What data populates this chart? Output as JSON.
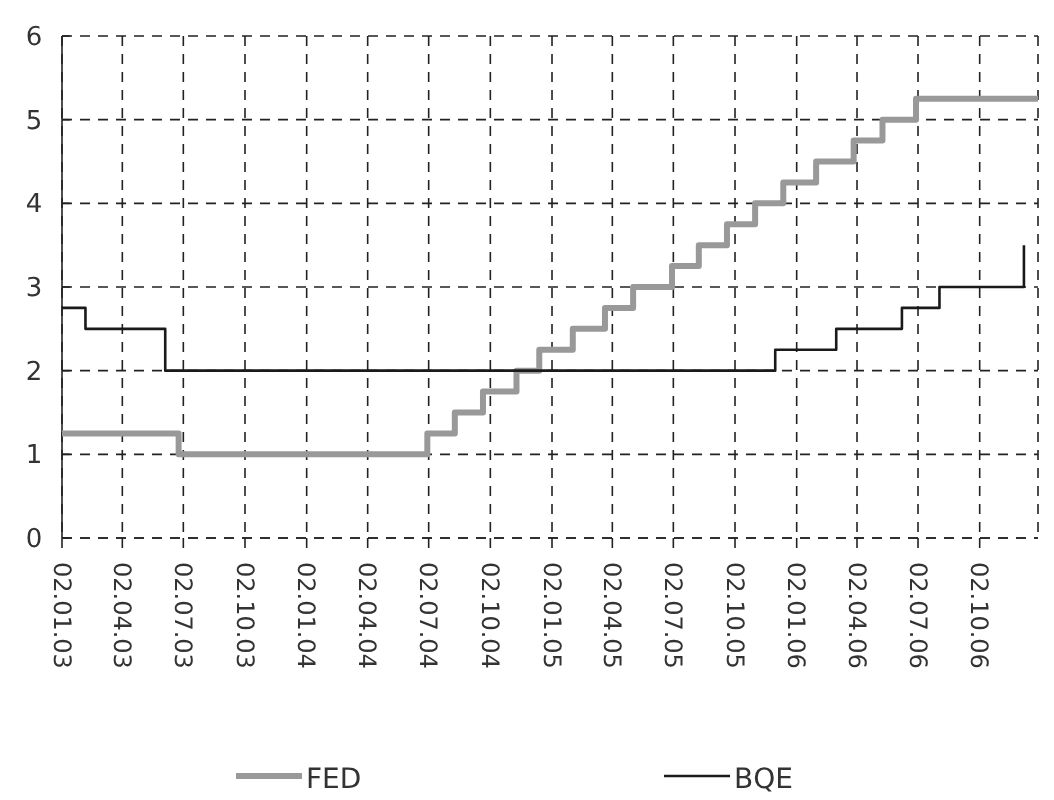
{
  "chart_data": {
    "type": "step",
    "legend": "bottom",
    "grid": true,
    "marker": "none",
    "line_style": "solid",
    "xlim": [
      "2003-01-02",
      "2006-12-28"
    ],
    "xticks": [
      {
        "value": "2003-01-02",
        "label": "02.01.03"
      },
      {
        "value": "2003-04-02",
        "label": "02.04.03"
      },
      {
        "value": "2003-07-02",
        "label": "02.07.03"
      },
      {
        "value": "2003-10-02",
        "label": "02.10.03"
      },
      {
        "value": "2004-01-02",
        "label": "02.01.04"
      },
      {
        "value": "2004-04-02",
        "label": "02.04.04"
      },
      {
        "value": "2004-07-02",
        "label": "02.07.04"
      },
      {
        "value": "2004-10-02",
        "label": "02.10.04"
      },
      {
        "value": "2005-01-02",
        "label": "02.01.05"
      },
      {
        "value": "2005-04-02",
        "label": "02.04.05"
      },
      {
        "value": "2005-07-02",
        "label": "02.07.05"
      },
      {
        "value": "2005-10-02",
        "label": "02.10.05"
      },
      {
        "value": "2006-01-02",
        "label": "02.01.06"
      },
      {
        "value": "2006-04-02",
        "label": "02.04.06"
      },
      {
        "value": "2006-07-02",
        "label": "02.07.06"
      },
      {
        "value": "2006-10-02",
        "label": "02.10.06"
      }
    ],
    "ylim": [
      0,
      6
    ],
    "yticks": [
      0,
      1,
      2,
      3,
      4,
      5,
      6
    ],
    "series": [
      {
        "name": "FED",
        "color": "#999999",
        "x": [
          "2003-01-02",
          "2003-06-25",
          "2004-06-30",
          "2004-08-10",
          "2004-09-21",
          "2004-11-10",
          "2004-12-14",
          "2005-02-02",
          "2005-03-22",
          "2005-05-03",
          "2005-06-30",
          "2005-08-09",
          "2005-09-20",
          "2005-11-01",
          "2005-12-13",
          "2006-01-31",
          "2006-03-28",
          "2006-05-10",
          "2006-06-29",
          "2006-12-28"
        ],
        "values": [
          1.25,
          1,
          1.25,
          1.5,
          1.75,
          2,
          2.25,
          2.5,
          2.75,
          3,
          3.25,
          3.5,
          3.75,
          4,
          4.25,
          4.5,
          4.75,
          5,
          5.25,
          5.25
        ]
      },
      {
        "name": "BQE",
        "color": "#1a1a1a",
        "x": [
          "2003-01-02",
          "2003-02-06",
          "2003-06-05",
          "2005-12-01",
          "2006-03-02",
          "2006-06-08",
          "2006-08-03",
          "2006-12-07"
        ],
        "values": [
          2.75,
          2.5,
          2,
          2.25,
          2.5,
          2.75,
          3,
          3.5
        ]
      }
    ]
  }
}
